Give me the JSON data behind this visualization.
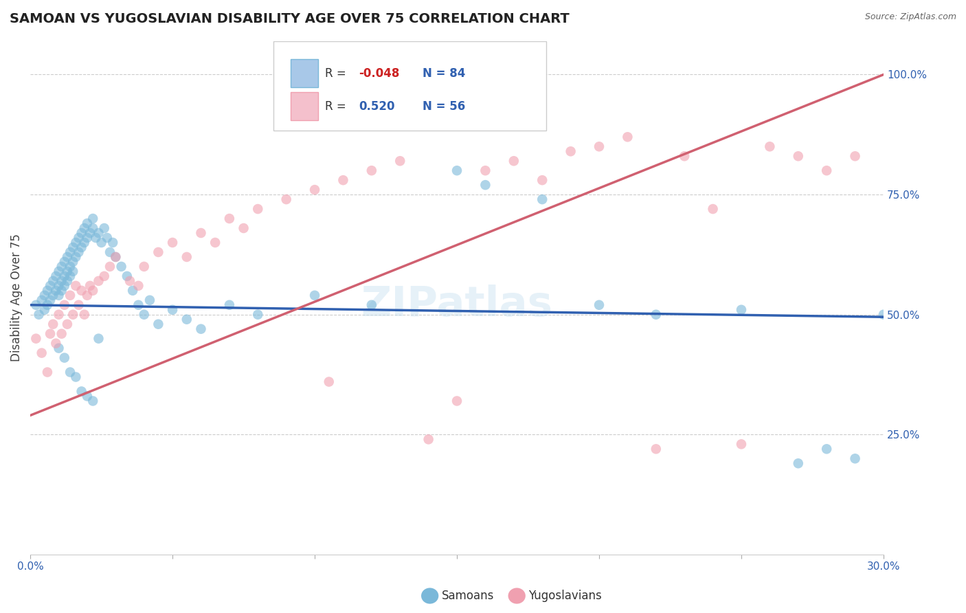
{
  "title": "SAMOAN VS YUGOSLAVIAN DISABILITY AGE OVER 75 CORRELATION CHART",
  "source": "Source: ZipAtlas.com",
  "ylabel": "Disability Age Over 75",
  "xlim": [
    0.0,
    30.0
  ],
  "ylim": [
    0.0,
    107.0
  ],
  "yticks": [
    25.0,
    50.0,
    75.0,
    100.0
  ],
  "ytick_labels": [
    "25.0%",
    "50.0%",
    "75.0%",
    "100.0%"
  ],
  "title_fontsize": 14,
  "axis_label_fontsize": 12,
  "tick_fontsize": 11,
  "legend_R_samoan": "-0.048",
  "legend_N_samoan": "84",
  "legend_R_yugoslav": "0.520",
  "legend_N_yugoslav": "56",
  "blue_color": "#7ab8d9",
  "pink_color": "#f0a0b0",
  "blue_line_color": "#3060b0",
  "pink_line_color": "#d06070",
  "blue_trend_x": [
    0.0,
    30.0
  ],
  "blue_trend_y": [
    52.0,
    49.5
  ],
  "pink_trend_x": [
    0.0,
    30.0
  ],
  "pink_trend_y": [
    29.0,
    100.0
  ],
  "samoan_x": [
    0.2,
    0.3,
    0.4,
    0.5,
    0.5,
    0.6,
    0.6,
    0.7,
    0.7,
    0.8,
    0.8,
    0.9,
    0.9,
    1.0,
    1.0,
    1.0,
    1.1,
    1.1,
    1.1,
    1.2,
    1.2,
    1.2,
    1.3,
    1.3,
    1.3,
    1.4,
    1.4,
    1.4,
    1.5,
    1.5,
    1.5,
    1.6,
    1.6,
    1.7,
    1.7,
    1.8,
    1.8,
    1.9,
    1.9,
    2.0,
    2.0,
    2.1,
    2.2,
    2.2,
    2.3,
    2.4,
    2.5,
    2.6,
    2.7,
    2.8,
    2.9,
    3.0,
    3.2,
    3.4,
    3.6,
    3.8,
    4.0,
    4.2,
    4.5,
    5.0,
    5.5,
    6.0,
    7.0,
    8.0,
    10.0,
    12.0,
    15.0,
    16.0,
    18.0,
    20.0,
    22.0,
    25.0,
    27.0,
    28.0,
    29.0,
    30.0,
    1.0,
    1.2,
    1.4,
    1.6,
    1.8,
    2.0,
    2.2,
    2.4
  ],
  "samoan_y": [
    52,
    50,
    53,
    51,
    54,
    52,
    55,
    53,
    56,
    54,
    57,
    55,
    58,
    54,
    56,
    59,
    55,
    57,
    60,
    56,
    58,
    61,
    57,
    59,
    62,
    58,
    60,
    63,
    59,
    61,
    64,
    62,
    65,
    63,
    66,
    64,
    67,
    65,
    68,
    66,
    69,
    67,
    68,
    70,
    66,
    67,
    65,
    68,
    66,
    63,
    65,
    62,
    60,
    58,
    55,
    52,
    50,
    53,
    48,
    51,
    49,
    47,
    52,
    50,
    54,
    52,
    80,
    77,
    74,
    52,
    50,
    51,
    19,
    22,
    20,
    50,
    43,
    41,
    38,
    37,
    34,
    33,
    32,
    45
  ],
  "yugoslav_x": [
    0.2,
    0.4,
    0.6,
    0.7,
    0.8,
    0.9,
    1.0,
    1.1,
    1.2,
    1.3,
    1.4,
    1.5,
    1.6,
    1.7,
    1.8,
    1.9,
    2.0,
    2.1,
    2.2,
    2.4,
    2.6,
    2.8,
    3.0,
    3.5,
    4.0,
    4.5,
    5.0,
    5.5,
    6.0,
    6.5,
    7.0,
    7.5,
    8.0,
    9.0,
    10.0,
    11.0,
    12.0,
    13.0,
    14.0,
    15.0,
    16.0,
    17.0,
    18.0,
    19.0,
    20.0,
    21.0,
    22.0,
    23.0,
    24.0,
    25.0,
    26.0,
    27.0,
    28.0,
    29.0,
    3.8,
    10.5
  ],
  "yugoslav_y": [
    45,
    42,
    38,
    46,
    48,
    44,
    50,
    46,
    52,
    48,
    54,
    50,
    56,
    52,
    55,
    50,
    54,
    56,
    55,
    57,
    58,
    60,
    62,
    57,
    60,
    63,
    65,
    62,
    67,
    65,
    70,
    68,
    72,
    74,
    76,
    78,
    80,
    82,
    24,
    32,
    80,
    82,
    78,
    84,
    85,
    87,
    22,
    83,
    72,
    23,
    85,
    83,
    80,
    83,
    56,
    36
  ]
}
